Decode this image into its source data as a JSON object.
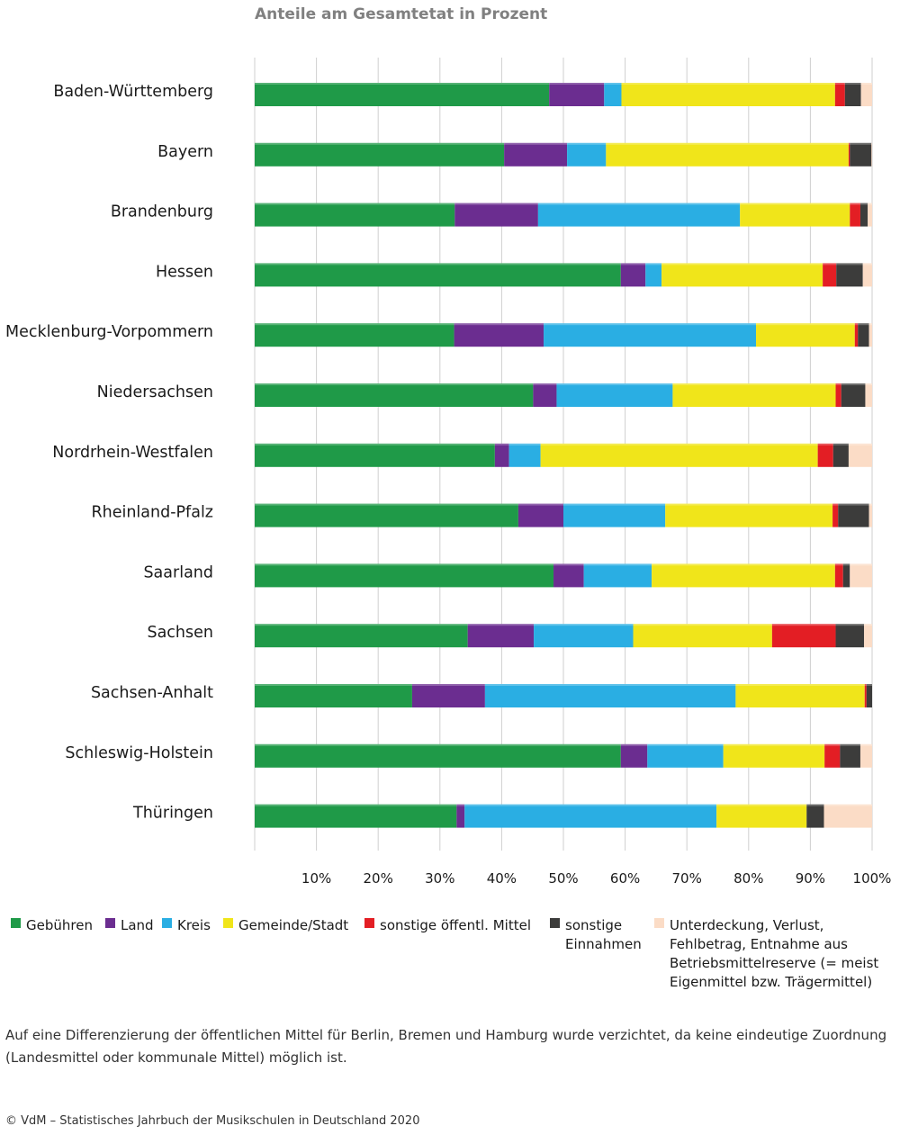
{
  "chart_data": {
    "type": "bar",
    "orientation": "horizontal",
    "stacked": true,
    "title": "Anteile am Gesamtetat in Prozent",
    "xlabel": "",
    "ylabel": "",
    "xlim": [
      0,
      100
    ],
    "ticks": [
      "10%",
      "20%",
      "30%",
      "40%",
      "50%",
      "60%",
      "70%",
      "80%",
      "90%",
      "100%"
    ],
    "grid": true,
    "legend_position": "bottom",
    "categories": [
      "Baden-Württemberg",
      "Bayern",
      "Brandenburg",
      "Hessen",
      "Mecklenburg-Vorpommern",
      "Niedersachsen",
      "Nordrhein-Westfalen",
      "Rheinland-Pfalz",
      "Saarland",
      "Sachsen",
      "Sachsen-Anhalt",
      "Schleswig-Holstein",
      "Thüringen"
    ],
    "series": [
      {
        "name": "Gebühren",
        "color": "#1f9a48",
        "values": [
          47.7,
          40.4,
          32.4,
          59.3,
          32.3,
          45.1,
          38.9,
          42.7,
          48.4,
          34.5,
          25.5,
          59.3,
          32.7
        ]
      },
      {
        "name": "Land",
        "color": "#6b2d90",
        "values": [
          8.9,
          10.2,
          13.5,
          4.0,
          14.5,
          3.8,
          2.3,
          7.3,
          4.9,
          10.7,
          11.8,
          4.3,
          1.3
        ]
      },
      {
        "name": "Kreis",
        "color": "#2aaee3",
        "values": [
          2.8,
          6.3,
          32.7,
          2.6,
          34.4,
          18.8,
          5.1,
          16.5,
          11.0,
          16.1,
          40.6,
          12.3,
          40.8
        ]
      },
      {
        "name": "Gemeinde/Stadt",
        "color": "#f0e51a",
        "values": [
          34.6,
          39.3,
          17.8,
          26.1,
          16.0,
          26.4,
          44.9,
          27.1,
          29.7,
          22.5,
          20.9,
          16.4,
          14.6
        ]
      },
      {
        "name": "sonstige öffentl. Mittel",
        "color": "#e31e24",
        "values": [
          1.6,
          0.2,
          1.7,
          2.2,
          0.5,
          0.9,
          2.5,
          0.9,
          1.3,
          10.3,
          0.3,
          2.5,
          0.0
        ]
      },
      {
        "name": "sonstige Einnahmen",
        "color": "#3c3c3b",
        "values": [
          2.6,
          3.5,
          1.2,
          4.3,
          1.8,
          3.9,
          2.5,
          5.0,
          1.1,
          4.6,
          0.9,
          3.3,
          2.8
        ]
      },
      {
        "name": "Unterdeckung, Verlust, Fehlbetrag, Entnahme aus Betriebsmittelreserve (= meist Eigenmittel bzw. Trägermittel)",
        "color": "#fbdcc6",
        "values": [
          1.8,
          0.1,
          0.7,
          1.5,
          0.5,
          1.1,
          3.8,
          0.5,
          3.6,
          1.3,
          0.0,
          1.9,
          7.8
        ]
      }
    ],
    "legend_lines": [
      [
        "Gebühren"
      ],
      [
        "Land"
      ],
      [
        "Kreis"
      ],
      [
        "Gemeinde/Stadt"
      ],
      [
        "sonstige öffentl. Mittel"
      ],
      [
        "sonstige",
        "Einnahmen"
      ],
      [
        "Unterdeckung, Verlust,",
        "Fehlbetrag, Entnahme aus",
        "Betriebsmittelreserve (= meist",
        "Eigenmittel bzw. Trägermittel)"
      ]
    ]
  },
  "footnote": "Auf eine Differenzierung der öffentlichen Mittel für Berlin, Bremen und Hamburg wurde verzichtet, da keine eindeutige Zuordnung (Landesmittel oder kommunale Mittel) möglich ist.",
  "source": "© VdM – Statistisches Jahrbuch der Musikschulen in Deutschland 2020"
}
